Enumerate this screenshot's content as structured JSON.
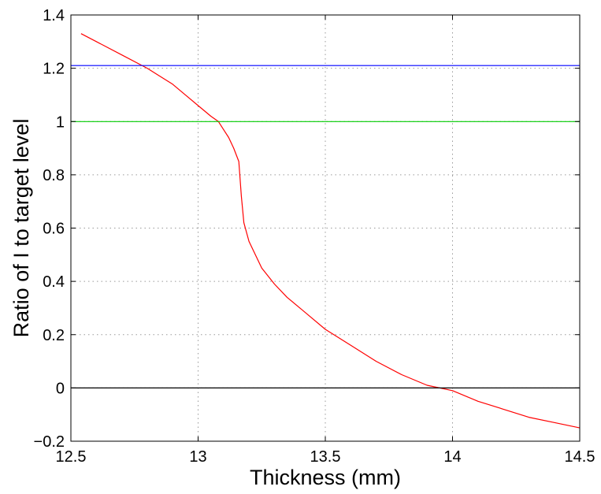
{
  "chart_data": {
    "type": "line",
    "title": "",
    "xlabel": "Thickness (mm)",
    "ylabel": "Ratio of I to target level",
    "xlim": [
      12.5,
      14.5
    ],
    "ylim": [
      -0.2,
      1.4
    ],
    "grid": true,
    "x_ticks": [
      12.5,
      13,
      13.5,
      14,
      14.5
    ],
    "x_tick_labels": [
      "12.5",
      "13",
      "13.5",
      "14",
      "14.5"
    ],
    "y_ticks": [
      -0.2,
      0,
      0.2,
      0.4,
      0.6,
      0.8,
      1,
      1.2,
      1.4
    ],
    "y_tick_labels": [
      "−0.2",
      "0",
      "0.2",
      "0.4",
      "0.6",
      "0.8",
      "1",
      "1.2",
      "1.4"
    ],
    "series": [
      {
        "color": "#ff0000",
        "x": [
          12.54,
          12.6,
          12.7,
          12.8,
          12.85,
          12.9,
          12.95,
          13.0,
          13.05,
          13.08,
          13.1,
          13.12,
          13.14,
          13.16,
          13.17,
          13.18,
          13.2,
          13.25,
          13.3,
          13.35,
          13.4,
          13.5,
          13.6,
          13.7,
          13.8,
          13.9,
          14.0,
          14.1,
          14.2,
          14.3,
          14.4,
          14.5
        ],
        "y": [
          1.33,
          1.3,
          1.25,
          1.2,
          1.17,
          1.14,
          1.1,
          1.06,
          1.02,
          1.0,
          0.97,
          0.94,
          0.9,
          0.85,
          0.72,
          0.62,
          0.55,
          0.45,
          0.39,
          0.34,
          0.3,
          0.22,
          0.16,
          0.1,
          0.05,
          0.01,
          -0.01,
          -0.05,
          -0.08,
          -0.11,
          -0.13,
          -0.15
        ]
      },
      {
        "color": "#0000ff",
        "x": [
          12.5,
          14.5
        ],
        "y": [
          1.21,
          1.21
        ]
      },
      {
        "color": "#00cc00",
        "x": [
          12.5,
          14.5
        ],
        "y": [
          1.0,
          1.0
        ]
      },
      {
        "color": "#000000",
        "x": [
          12.5,
          14.5
        ],
        "y": [
          0.0,
          0.0
        ]
      }
    ]
  }
}
